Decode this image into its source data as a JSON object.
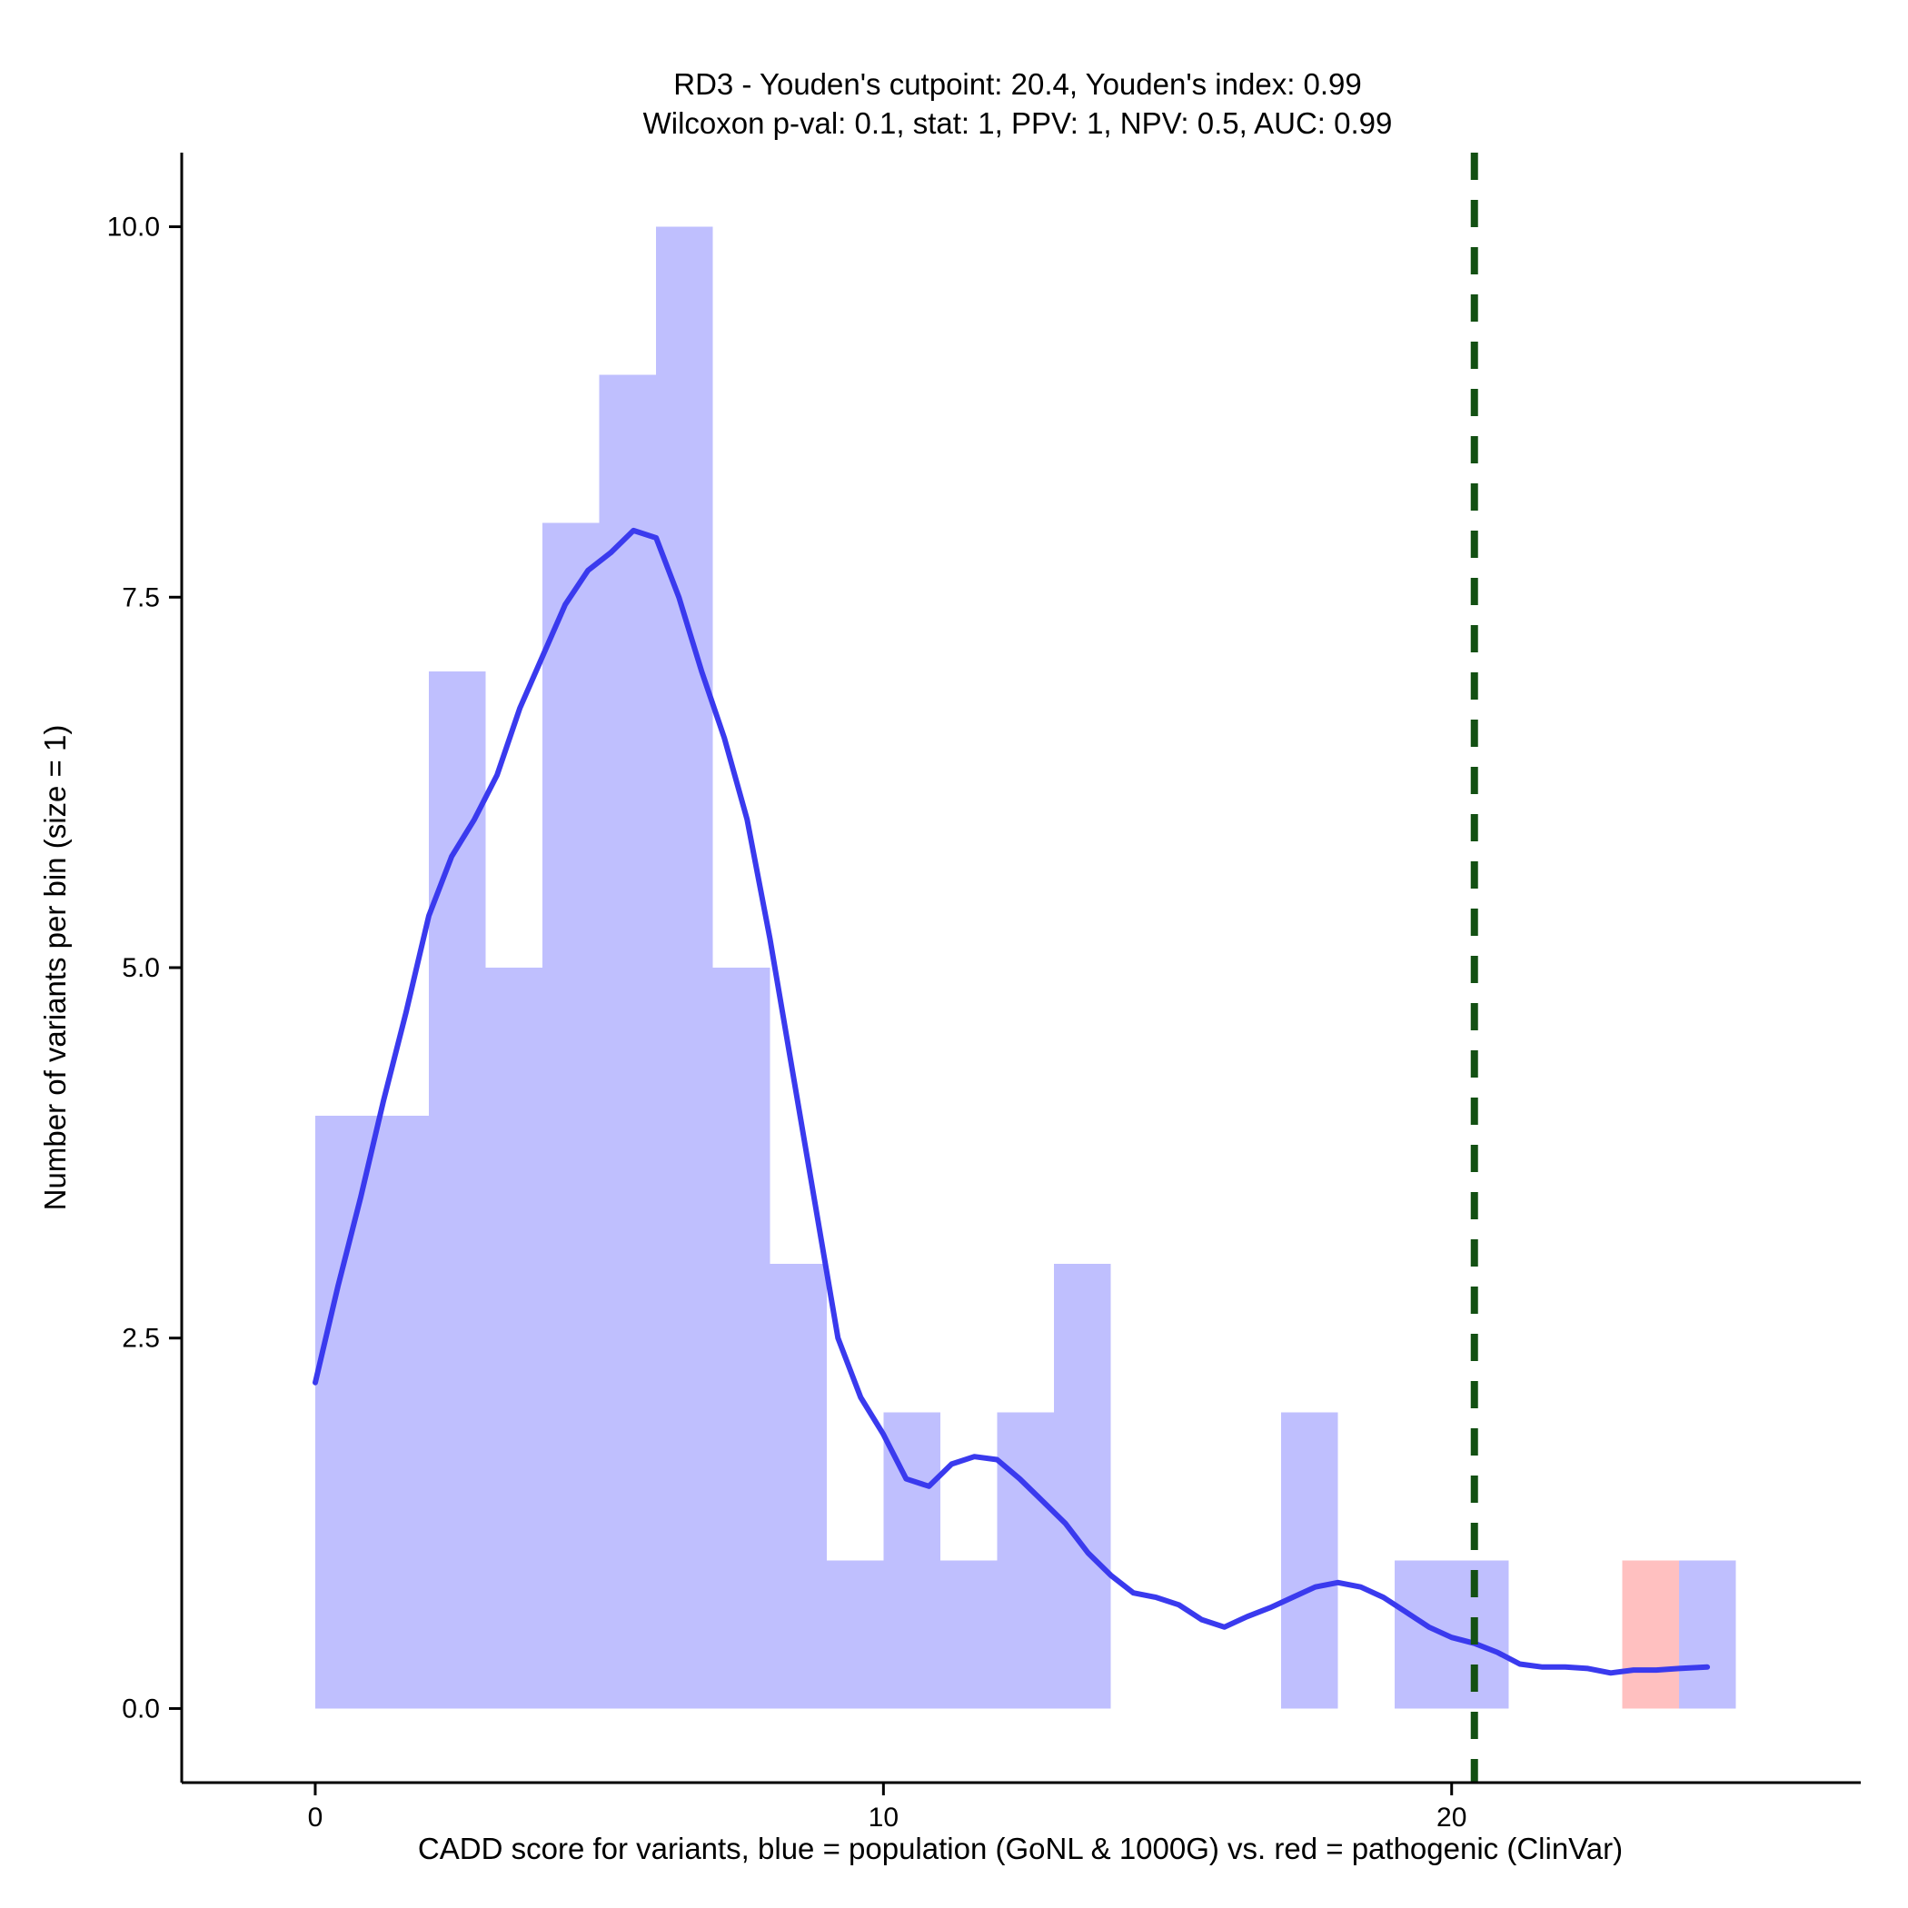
{
  "chart_data": {
    "type": "bar",
    "title": "RD3 - Youden's cutpoint: 20.4, Youden's index: 0.99",
    "subtitle": "Wilcoxon p-val: 0.1, stat: 1, PPV: 1, NPV: 0.5, AUC: 0.99",
    "xlabel": "CADD score for variants, blue = population (GoNL & 1000G) vs. red = pathogenic (ClinVar)",
    "ylabel": "Number of variants per bin (size = 1)",
    "xlim": [
      -2.35,
      27.2
    ],
    "ylim": [
      -0.5,
      10.5
    ],
    "x_ticks": [
      0,
      10,
      20
    ],
    "x_tick_labels": [
      "0",
      "10",
      "20"
    ],
    "y_ticks": [
      0,
      2.5,
      5,
      7.5,
      10
    ],
    "y_tick_labels": [
      "0.0",
      "2.5",
      "5.0",
      "7.5",
      "10.0"
    ],
    "bin_size": 1,
    "series": [
      {
        "name": "population (GoNL & 1000G)",
        "color": "#bfbffe",
        "bins": [
          {
            "x0": 0,
            "x1": 2,
            "count": 4
          },
          {
            "x0": 2,
            "x1": 3,
            "count": 7
          },
          {
            "x0": 3,
            "x1": 4,
            "count": 5
          },
          {
            "x0": 4,
            "x1": 5,
            "count": 8
          },
          {
            "x0": 5,
            "x1": 6,
            "count": 9
          },
          {
            "x0": 6,
            "x1": 7,
            "count": 10
          },
          {
            "x0": 7,
            "x1": 8,
            "count": 5
          },
          {
            "x0": 8,
            "x1": 9,
            "count": 3
          },
          {
            "x0": 9,
            "x1": 10,
            "count": 1
          },
          {
            "x0": 10,
            "x1": 11,
            "count": 2
          },
          {
            "x0": 11,
            "x1": 12,
            "count": 1
          },
          {
            "x0": 12,
            "x1": 13,
            "count": 2
          },
          {
            "x0": 13,
            "x1": 14,
            "count": 3
          },
          {
            "x0": 17,
            "x1": 18,
            "count": 2
          },
          {
            "x0": 19,
            "x1": 21,
            "count": 1
          },
          {
            "x0": 24,
            "x1": 25,
            "count": 1
          }
        ]
      },
      {
        "name": "pathogenic (ClinVar)",
        "color": "#ffc0c0",
        "bins": [
          {
            "x0": 23,
            "x1": 24,
            "count": 1
          }
        ]
      }
    ],
    "density_curve": {
      "color": "#3a3aee",
      "x": [
        0,
        0.4,
        0.8,
        1.2,
        1.6,
        2.0,
        2.4,
        2.8,
        3.2,
        3.6,
        4.0,
        4.4,
        4.8,
        5.2,
        5.6,
        6.0,
        6.4,
        6.8,
        7.2,
        7.6,
        8.0,
        8.4,
        8.8,
        9.2,
        9.6,
        10.0,
        10.4,
        10.8,
        11.2,
        11.6,
        12.0,
        12.4,
        12.8,
        13.2,
        13.6,
        14.0,
        14.4,
        14.8,
        15.2,
        15.6,
        16.0,
        16.4,
        16.8,
        17.2,
        17.6,
        18.0,
        18.4,
        18.8,
        19.2,
        19.6,
        20.0,
        20.4,
        20.8,
        21.2,
        21.6,
        22.0,
        22.4,
        22.8,
        23.2,
        23.6,
        24.0,
        24.5
      ],
      "y": [
        2.2,
        2.85,
        3.45,
        4.1,
        4.7,
        5.35,
        5.75,
        6.0,
        6.3,
        6.75,
        7.1,
        7.45,
        7.68,
        7.8,
        7.95,
        7.9,
        7.5,
        7.0,
        6.55,
        6.0,
        5.2,
        4.3,
        3.4,
        2.5,
        2.1,
        1.85,
        1.55,
        1.5,
        1.65,
        1.7,
        1.68,
        1.55,
        1.4,
        1.25,
        1.05,
        0.9,
        0.78,
        0.75,
        0.7,
        0.6,
        0.55,
        0.62,
        0.68,
        0.75,
        0.82,
        0.85,
        0.82,
        0.75,
        0.65,
        0.55,
        0.48,
        0.44,
        0.38,
        0.3,
        0.28,
        0.28,
        0.27,
        0.24,
        0.26,
        0.26,
        0.27,
        0.28
      ]
    },
    "cutpoint": {
      "value": 20.4,
      "color": "#135013",
      "style": "dashed"
    },
    "grid": false
  }
}
